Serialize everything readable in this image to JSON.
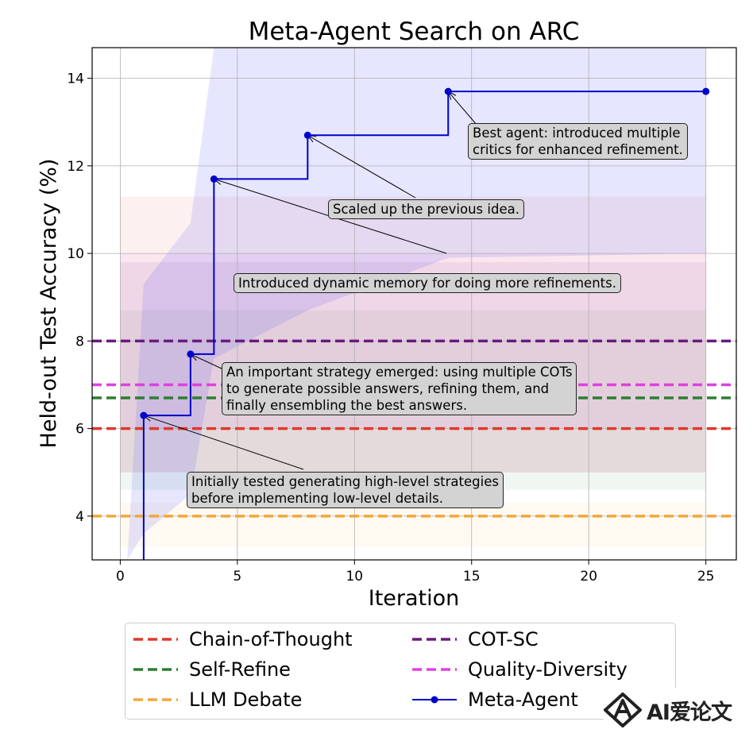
{
  "chart_data": {
    "type": "line",
    "title": "Meta-Agent Search on ARC",
    "xlabel": "Iteration",
    "ylabel": "Held-out Test Accuracy (%)",
    "xlim": [
      -1.2,
      26.3
    ],
    "ylim": [
      3.0,
      14.7
    ],
    "xticks": [
      0,
      5,
      10,
      15,
      20,
      25
    ],
    "yticks": [
      4,
      6,
      8,
      10,
      12,
      14
    ],
    "grid": true,
    "meta_agent": {
      "name": "Meta-Agent",
      "color": "#0000cc",
      "points": [
        {
          "x": 1,
          "y": 6.3
        },
        {
          "x": 3,
          "y": 7.7
        },
        {
          "x": 4,
          "y": 11.7
        },
        {
          "x": 8,
          "y": 12.7
        },
        {
          "x": 14,
          "y": 13.7
        },
        {
          "x": 25,
          "y": 13.7
        }
      ],
      "start": {
        "x": 1,
        "y": 2.0
      },
      "confidence_band": {
        "x": [
          0.3,
          1,
          3,
          4,
          8,
          14,
          25
        ],
        "lower": [
          2.0,
          3.6,
          4.5,
          7.6,
          8.7,
          9.9,
          10.0
        ],
        "upper": [
          2.0,
          9.3,
          10.7,
          15.2,
          15.2,
          15.2,
          15.2
        ]
      }
    },
    "baselines": [
      {
        "name": "Chain-of-Thought",
        "value": 6.0,
        "color": "#e0392b",
        "band": [
          5.0,
          11.3
        ]
      },
      {
        "name": "Self-Refine",
        "value": 6.7,
        "color": "#2e7d32",
        "band": [
          4.6,
          8.7
        ]
      },
      {
        "name": "LLM Debate",
        "value": 4.0,
        "color": "#f2a73b",
        "band": [
          3.3,
          4.3
        ]
      },
      {
        "name": "COT-SC",
        "value": 8.0,
        "color": "#6a1b7e",
        "band": [
          5.0,
          9.8
        ]
      },
      {
        "name": "Quality-Diversity",
        "value": 7.0,
        "color": "#e040e0",
        "band": [
          6.0,
          10.0
        ]
      }
    ],
    "annotations": [
      {
        "text": "Best agent: introduced multiple\ncritics for enhanced refinement.",
        "x": 14,
        "y": 13.7
      },
      {
        "text": "Scaled up the previous idea.",
        "x": 8,
        "y": 12.7
      },
      {
        "text": "Introduced dynamic memory for doing more refinements.",
        "x": 4,
        "y": 11.7
      },
      {
        "text": "An important strategy emerged: using multiple COTs\nto generate possible answers, refining them, and\nfinally ensembling the best answers.",
        "x": 3,
        "y": 7.7
      },
      {
        "text": "Initially tested generating high-level strategies\nbefore implementing low-level details.",
        "x": 1,
        "y": 6.3
      }
    ],
    "legend": {
      "placement": "below",
      "entries": [
        "Chain-of-Thought",
        "Self-Refine",
        "LLM Debate",
        "COT-SC",
        "Quality-Diversity",
        "Meta-Agent"
      ]
    }
  },
  "watermark": {
    "text": "AI爱论文",
    "logo": "a-logo-icon"
  }
}
